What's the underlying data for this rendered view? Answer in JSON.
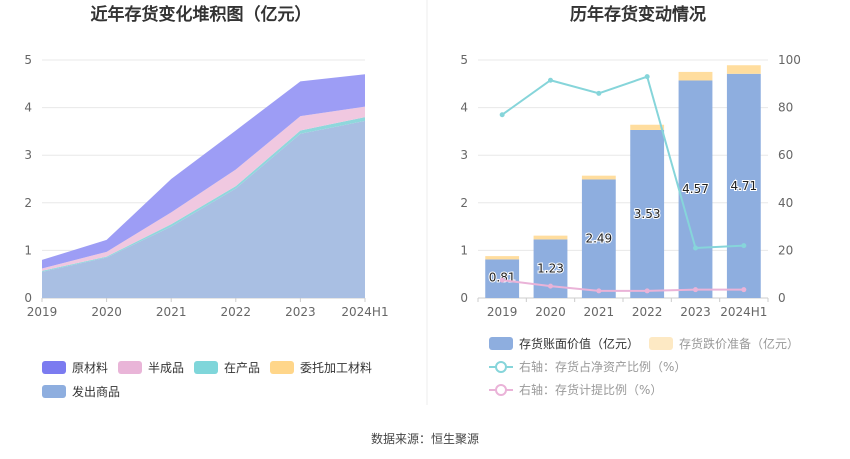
{
  "source": "数据来源：恒生聚源",
  "chart_data": [
    {
      "type": "area",
      "stacked": true,
      "title": "近年存货变化堆积图（亿元）",
      "categories": [
        "2019",
        "2020",
        "2021",
        "2022",
        "2023",
        "2024H1"
      ],
      "ylim": [
        0,
        5
      ],
      "yticks": [
        0,
        1,
        2,
        3,
        4,
        5
      ],
      "legend_position": "bottom",
      "grid": true,
      "series": [
        {
          "name": "发出商品",
          "color": "#a9bfe3",
          "values": [
            0.55,
            0.85,
            1.5,
            2.3,
            3.45,
            3.72
          ]
        },
        {
          "name": "在产品",
          "color": "#8fd7dc",
          "values": [
            0.02,
            0.02,
            0.05,
            0.05,
            0.07,
            0.08
          ]
        },
        {
          "name": "委托加工材料",
          "color": "#ffe0a3",
          "values": [
            0.0,
            0.0,
            0.0,
            0.0,
            0.0,
            0.0
          ]
        },
        {
          "name": "半成品",
          "color": "#f0c8e0",
          "values": [
            0.05,
            0.1,
            0.25,
            0.35,
            0.3,
            0.22
          ]
        },
        {
          "name": "原材料",
          "color": "#9d9df5",
          "values": [
            0.18,
            0.25,
            0.7,
            0.82,
            0.73,
            0.68
          ]
        }
      ],
      "legend_order": [
        "原材料",
        "半成品",
        "在产品",
        "委托加工材料",
        "发出商品"
      ],
      "legend_colors": {
        "原材料": "#7b7bf0",
        "半成品": "#e9b5d8",
        "在产品": "#7fd6da",
        "委托加工材料": "#ffd68a",
        "发出商品": "#8eaedf"
      }
    },
    {
      "type": "bar",
      "stacked": true,
      "title": "历年存货变动情况",
      "categories": [
        "2019",
        "2020",
        "2021",
        "2022",
        "2023",
        "2024H1"
      ],
      "ylim": [
        0,
        5
      ],
      "yticks": [
        0,
        1,
        2,
        3,
        4,
        5
      ],
      "y2lim": [
        0,
        100
      ],
      "y2ticks": [
        0,
        20,
        40,
        60,
        80,
        100
      ],
      "legend_position": "bottom",
      "grid": true,
      "series": [
        {
          "name": "存货账面价值（亿元）",
          "color": "#8eaedf",
          "axis": "left",
          "values": [
            0.81,
            1.23,
            2.49,
            3.53,
            4.57,
            4.71
          ],
          "labels": [
            "0.81",
            "1.23",
            "2.49",
            "3.53",
            "4.57",
            "4.71"
          ]
        },
        {
          "name": "存货跌价准备（亿元）",
          "color": "#ffdd9e",
          "axis": "left",
          "values": [
            0.07,
            0.08,
            0.08,
            0.11,
            0.18,
            0.18
          ]
        }
      ],
      "lines": [
        {
          "name": "右轴：存货占净资产比例（%）",
          "color": "#86d5da",
          "axis": "right",
          "values": [
            77,
            91.5,
            86,
            93,
            21,
            22
          ]
        },
        {
          "name": "右轴：存货计提比例（%）",
          "color": "#eab3d8",
          "axis": "right",
          "values": [
            7.5,
            5,
            3,
            3,
            3.5,
            3.5
          ]
        }
      ]
    }
  ]
}
